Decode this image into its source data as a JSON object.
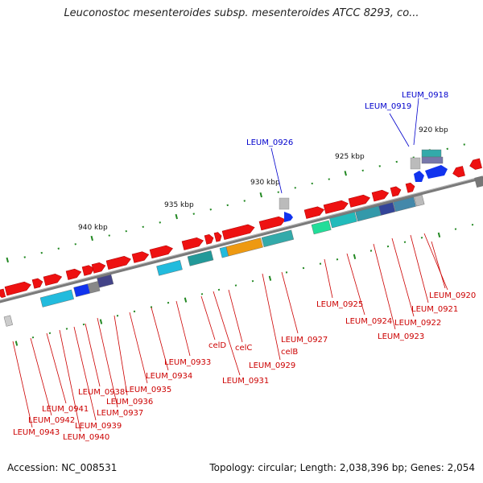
{
  "title": "Leuconostoc mesenteroides subsp. mesenteroides ATCC 8293, co...",
  "footer": {
    "accession": "Accession: NC_008531",
    "stats": "Topology: circular; Length: 2,038,396 bp; Genes: 2,054"
  },
  "colors": {
    "backbone": "#808080",
    "forward_gene": "#ee1111",
    "highlight_gene": "#1133ee",
    "label_red": "#cc0000",
    "label_blue": "#0000cc",
    "tick": "#228822",
    "cyan_feature": "#22bbdd",
    "orange_feature": "#ee9911",
    "green_feature": "#22dd99"
  },
  "kbp_labels": [
    "940 kbp",
    "935 kbp",
    "930 kbp",
    "925 kbp",
    "920 kbp"
  ],
  "gene_labels_red": [
    "LEUM_0920",
    "LEUM_0921",
    "LEUM_0922",
    "LEUM_0923",
    "LEUM_0924",
    "LEUM_0925",
    "LEUM_0927",
    "celB",
    "LEUM_0929",
    "celC",
    "celD",
    "LEUM_0931",
    "LEUM_0933",
    "LEUM_0934",
    "LEUM_0935",
    "LEUM_0936",
    "LEUM_0937",
    "LEUM_0938",
    "LEUM_0939",
    "LEUM_0940",
    "LEUM_0941",
    "LEUM_0942",
    "LEUM_0943"
  ],
  "gene_labels_blue": [
    "LEUM_0918",
    "LEUM_0919",
    "LEUM_0926"
  ]
}
